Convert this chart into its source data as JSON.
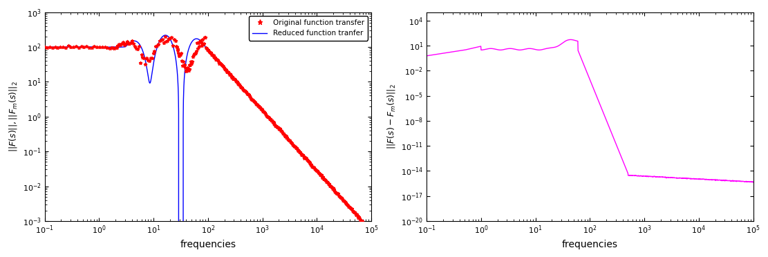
{
  "fig_width": 11.11,
  "fig_height": 3.72,
  "dpi": 100,
  "left_xlabel": "frequencies",
  "left_ylabel": "||F(s)||,||F_m(s)||_2",
  "left_xlim": [
    0.1,
    100000
  ],
  "left_ylim": [
    0.001,
    1000.0
  ],
  "right_xlabel": "frequencies",
  "right_ylabel": "||F(s)-F_m(s)||_2",
  "right_xlim": [
    0.1,
    100000
  ],
  "right_ylim": [
    1e-20,
    100000.0
  ],
  "legend_labels": [
    "Original function transfer",
    "Reduced function tranfer"
  ],
  "red_color": "#ff0000",
  "blue_color": "#0000ff",
  "magenta_color": "#ff00ff",
  "background_color": "#ffffff"
}
